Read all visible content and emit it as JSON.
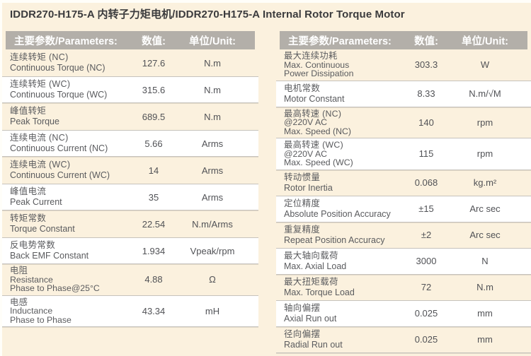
{
  "page": {
    "title": "IDDR270-H175-A 内转子力矩电机/IDDR270-H175-A Internal Rotor Torque Motor"
  },
  "header_labels": {
    "param": "主要参数/Parameters:",
    "value": "数值:",
    "unit": "单位/Unit:"
  },
  "left_table": {
    "rows": [
      {
        "zh": "连续转矩 (NC)",
        "en": "Continuous Torque (NC)",
        "value": "127.6",
        "unit": "N.m"
      },
      {
        "zh": "连续转矩 (WC)",
        "en": "Continuous Torque (WC)",
        "value": "315.6",
        "unit": "N.m"
      },
      {
        "zh": "峰值转矩",
        "en": "Peak Torque",
        "value": "689.5",
        "unit": "N.m"
      },
      {
        "zh": "连续电流 (NC)",
        "en": "Continuous Current (NC)",
        "value": "5.66",
        "unit": "Arms"
      },
      {
        "zh": "连续电流 (WC)",
        "en": "Continuous Current (WC)",
        "value": "14",
        "unit": "Arms"
      },
      {
        "zh": "峰值电流",
        "en": "Peak Current",
        "value": "35",
        "unit": "Arms"
      },
      {
        "zh": "转矩常数",
        "en": "Torque Constant",
        "value": "22.54",
        "unit": "N.m/Arms"
      },
      {
        "zh": "反电势常数",
        "en": "Back EMF Constant",
        "value": "1.934",
        "unit": "Vpeak/rpm"
      },
      {
        "zh": "电阻",
        "en": "Resistance",
        "en2": "Phase to Phase@25°C",
        "value": "4.88",
        "unit": "Ω"
      },
      {
        "zh": "电感",
        "en": "Inductance",
        "en2": "Phase to Phase",
        "value": "43.34",
        "unit": "mH"
      }
    ]
  },
  "right_table": {
    "rows": [
      {
        "zh": "最大连续功耗",
        "en": "Max. Continuous",
        "en2": "Power Dissipation",
        "value": "303.3",
        "unit": "W"
      },
      {
        "zh": "电机常数",
        "en": "Motor Constant",
        "value": "8.33",
        "unit": "N.m/√M"
      },
      {
        "zh": "最高转速 (NC)",
        "en": "@220V AC",
        "en2": "Max. Speed (NC)",
        "value": "140",
        "unit": "rpm"
      },
      {
        "zh": "最高转速 (WC)",
        "en": "@220V AC",
        "en2": "Max. Speed (WC)",
        "value": "115",
        "unit": "rpm"
      },
      {
        "zh": "转动惯量",
        "en": "Rotor Inertia",
        "value": "0.068",
        "unit": "kg.m²"
      },
      {
        "zh": "定位精度",
        "en": "Absolute Position Accuracy",
        "value": "±15",
        "unit": "Arc sec"
      },
      {
        "zh": "重复精度",
        "en": "Repeat Position Accuracy",
        "value": "±2",
        "unit": "Arc sec"
      },
      {
        "zh": "最大轴向载荷",
        "en": "Max. Axial Load",
        "value": "3000",
        "unit": "N"
      },
      {
        "zh": "最大扭矩载荷",
        "en": "Max. Torque Load",
        "value": "72",
        "unit": "N.m"
      },
      {
        "zh": "轴向偏摆",
        "en": "Axial Run out",
        "value": "0.025",
        "unit": "mm"
      },
      {
        "zh": "径向偏摆",
        "en": "Radial Run out",
        "value": "0.025",
        "unit": "mm"
      }
    ]
  },
  "colors": {
    "page_background": "#fbf1de",
    "header_bg": "#b3afa9",
    "header_text": "#ffffff",
    "row_white_bg": "#ffffff",
    "separator": "#c6c2bc",
    "label_text": "#5a5b5e",
    "value_text": "#515256"
  }
}
